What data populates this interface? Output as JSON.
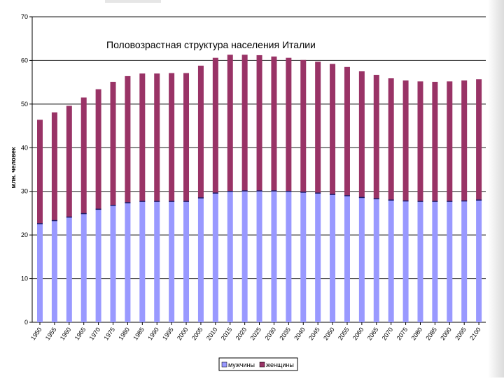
{
  "chart_data": {
    "type": "bar",
    "stacked": true,
    "title": "Половозрастная структура населения Италии",
    "ylabel": "млн. человек",
    "xlabel": "",
    "ylim": [
      0,
      70
    ],
    "yticks": [
      0,
      10,
      20,
      30,
      40,
      50,
      60,
      70
    ],
    "grid": true,
    "legend_position": "bottom",
    "categories": [
      "1950",
      "1955",
      "1960",
      "1965",
      "1970",
      "1975",
      "1980",
      "1985",
      "1990",
      "1995",
      "2000",
      "2005",
      "2010",
      "2015",
      "2020",
      "2025",
      "2030",
      "2035",
      "2040",
      "2045",
      "2050",
      "2055",
      "2060",
      "2065",
      "2070",
      "2075",
      "2080",
      "2085",
      "2090",
      "2095",
      "2100"
    ],
    "series": [
      {
        "name": "мужчины",
        "color": "#9999ff",
        "values": [
          22.6,
          23.3,
          24.1,
          24.9,
          25.9,
          26.8,
          27.4,
          27.7,
          27.7,
          27.7,
          27.7,
          28.5,
          29.6,
          30.0,
          30.1,
          30.1,
          30.1,
          30.0,
          29.8,
          29.6,
          29.3,
          29.0,
          28.6,
          28.3,
          28.0,
          27.8,
          27.7,
          27.7,
          27.7,
          27.8,
          28.0
        ],
        "top_edge_color": "#1a1a66"
      },
      {
        "name": "женщины",
        "color": "#993366",
        "values": [
          23.8,
          24.8,
          25.5,
          26.6,
          27.5,
          28.3,
          29.0,
          29.3,
          29.3,
          29.4,
          29.4,
          30.3,
          31.0,
          31.3,
          31.2,
          31.1,
          30.8,
          30.6,
          30.3,
          30.1,
          29.9,
          29.5,
          28.9,
          28.4,
          27.9,
          27.6,
          27.5,
          27.4,
          27.5,
          27.6,
          27.7
        ]
      }
    ]
  }
}
